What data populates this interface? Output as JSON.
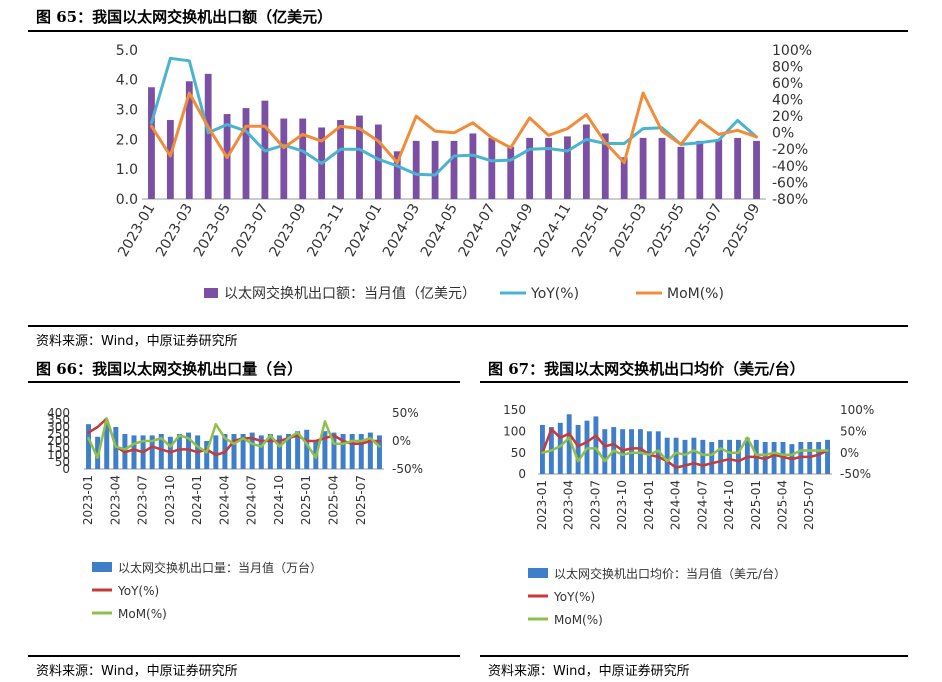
{
  "figure65": {
    "title": "图 65：我国以太网交换机出口额（亿美元）",
    "source": "资料来源：Wind，中原证券研究所"
  },
  "figure66": {
    "title": "图 66：我国以太网交换机出口量（台）",
    "source": "资料来源：Wind，中原证券研究所"
  },
  "figure67": {
    "title": "图 67：我国以太网交换机出口均价（美元/台）",
    "source": "资料来源：Wind，中原证券研究所"
  },
  "colors": {
    "purple": "#7a4fa4",
    "cyan": "#4ab4d0",
    "orange": "#f08c3a",
    "blue": "#3f7ec8",
    "red": "#c63a3a",
    "green": "#8ec04a"
  },
  "chart_data": [
    {
      "id": "c65",
      "type": "bar+line",
      "title": "我国以太网交换机出口额（亿美元）",
      "categories": [
        "2023-01",
        "2023-02",
        "2023-03",
        "2023-04",
        "2023-05",
        "2023-06",
        "2023-07",
        "2023-08",
        "2023-09",
        "2023-10",
        "2023-11",
        "2023-12",
        "2024-01",
        "2024-02",
        "2024-03",
        "2024-04",
        "2024-05",
        "2024-06",
        "2024-07",
        "2024-08",
        "2024-09",
        "2024-10",
        "2024-11",
        "2024-12",
        "2025-01",
        "2025-02",
        "2025-03",
        "2025-04",
        "2025-05",
        "2025-06",
        "2025-07",
        "2025-08",
        "2025-09"
      ],
      "tick_labels": [
        "2023-01",
        "2023-03",
        "2023-05",
        "2023-07",
        "2023-09",
        "2023-11",
        "2024-01",
        "2024-03",
        "2024-05",
        "2024-07",
        "2024-09",
        "2024-11",
        "2025-01",
        "2025-03",
        "2025-05",
        "2025-07",
        "2025-09"
      ],
      "left_ticks": [
        "0.0",
        "1.0",
        "2.0",
        "3.0",
        "4.0",
        "5.0"
      ],
      "right_ticks": [
        "-80%",
        "-60%",
        "-40%",
        "-20%",
        "0%",
        "20%",
        "40%",
        "60%",
        "80%",
        "100%"
      ],
      "ylim_left": [
        0,
        5
      ],
      "ylim_right": [
        -80,
        100
      ],
      "series": [
        {
          "name": "以太网交换机出口额：当月值（亿美元）",
          "kind": "bar",
          "axis": "left",
          "values": [
            3.75,
            2.65,
            3.95,
            4.2,
            2.85,
            3.05,
            3.3,
            2.7,
            2.7,
            2.4,
            2.65,
            2.8,
            2.5,
            1.6,
            1.95,
            1.95,
            1.95,
            2.2,
            2.05,
            1.75,
            2.05,
            2.05,
            2.1,
            2.5,
            2.2,
            1.4,
            2.05,
            2.05,
            1.75,
            1.95,
            2.0,
            2.05,
            1.95
          ]
        },
        {
          "name": "YoY(%)",
          "kind": "line",
          "axis": "right",
          "values": [
            12,
            90,
            87,
            0,
            10,
            2,
            -22,
            -15,
            -22,
            -37,
            -20,
            -20,
            -32,
            -40,
            -50,
            -51,
            -28,
            -27,
            -34,
            -33,
            -20,
            -19,
            -22,
            -8,
            -13,
            -13,
            5,
            6,
            -14,
            -12,
            -9,
            15,
            -5
          ]
        },
        {
          "name": "MoM(%)",
          "kind": "line",
          "axis": "right",
          "values": [
            8,
            -28,
            48,
            7,
            -30,
            8,
            8,
            -18,
            -2,
            -10,
            8,
            5,
            -10,
            -36,
            20,
            2,
            0,
            12,
            -6,
            -18,
            18,
            -3,
            5,
            22,
            -12,
            -36,
            48,
            2,
            -14,
            15,
            -2,
            3,
            -5
          ]
        }
      ]
    },
    {
      "id": "c66",
      "type": "bar+line",
      "title": "我国以太网交换机出口量（台）",
      "categories": [
        "2023-01",
        "2023-02",
        "2023-03",
        "2023-04",
        "2023-05",
        "2023-06",
        "2023-07",
        "2023-08",
        "2023-09",
        "2023-10",
        "2023-11",
        "2023-12",
        "2024-01",
        "2024-02",
        "2024-03",
        "2024-04",
        "2024-05",
        "2024-06",
        "2024-07",
        "2024-08",
        "2024-09",
        "2024-10",
        "2024-11",
        "2024-12",
        "2025-01",
        "2025-02",
        "2025-03",
        "2025-04",
        "2025-05",
        "2025-06",
        "2025-07",
        "2025-08",
        "2025-09"
      ],
      "tick_labels": [
        "2023-01",
        "2023-04",
        "2023-07",
        "2023-10",
        "2024-01",
        "2024-04",
        "2024-07",
        "2024-10",
        "2025-01",
        "2025-04",
        "2025-07"
      ],
      "left_ticks": [
        "0",
        "50",
        "100",
        "150",
        "200",
        "250",
        "300",
        "350",
        "400"
      ],
      "right_ticks": [
        "-50%",
        "0%",
        "50%"
      ],
      "ylim_left": [
        0,
        400
      ],
      "ylim_right": [
        -50,
        50
      ],
      "series": [
        {
          "name": "以太网交换机出口量：当月值（万台）",
          "kind": "bar",
          "axis": "left",
          "values": [
            320,
            230,
            330,
            300,
            250,
            240,
            240,
            240,
            250,
            230,
            250,
            260,
            240,
            200,
            240,
            250,
            250,
            250,
            260,
            240,
            250,
            240,
            250,
            270,
            280,
            200,
            270,
            260,
            250,
            250,
            250,
            260,
            240
          ]
        },
        {
          "name": "YoY(%)",
          "kind": "line",
          "axis": "right",
          "values": [
            15,
            25,
            40,
            -10,
            -20,
            -15,
            -20,
            -10,
            -15,
            -20,
            -15,
            -15,
            -20,
            -15,
            -25,
            -20,
            0,
            5,
            5,
            0,
            0,
            0,
            5,
            10,
            0,
            0,
            5,
            10,
            0,
            -5,
            -5,
            0,
            0
          ]
        },
        {
          "name": "MoM(%)",
          "kind": "line",
          "axis": "right",
          "values": [
            5,
            -30,
            40,
            -10,
            -15,
            -5,
            0,
            0,
            5,
            -10,
            10,
            5,
            -10,
            -20,
            30,
            5,
            -5,
            5,
            -5,
            -10,
            10,
            -10,
            5,
            15,
            -5,
            -30,
            35,
            -5,
            -5,
            0,
            0,
            5,
            -10
          ]
        }
      ]
    },
    {
      "id": "c67",
      "type": "bar+line",
      "title": "我国以太网交换机出口均价（美元/台）",
      "categories": [
        "2023-01",
        "2023-02",
        "2023-03",
        "2023-04",
        "2023-05",
        "2023-06",
        "2023-07",
        "2023-08",
        "2023-09",
        "2023-10",
        "2023-11",
        "2023-12",
        "2024-01",
        "2024-02",
        "2024-03",
        "2024-04",
        "2024-05",
        "2024-06",
        "2024-07",
        "2024-08",
        "2024-09",
        "2024-10",
        "2024-11",
        "2024-12",
        "2025-01",
        "2025-02",
        "2025-03",
        "2025-04",
        "2025-05",
        "2025-06",
        "2025-07",
        "2025-08",
        "2025-09"
      ],
      "tick_labels": [
        "2023-01",
        "2023-04",
        "2023-07",
        "2023-10",
        "2024-01",
        "2024-04",
        "2024-07",
        "2024-10",
        "2025-01",
        "2025-04",
        "2025-07"
      ],
      "left_ticks": [
        "0",
        "50",
        "100",
        "150"
      ],
      "right_ticks": [
        "-50%",
        "0%",
        "50%",
        "100%"
      ],
      "ylim_left": [
        0,
        150
      ],
      "ylim_right": [
        -50,
        100
      ],
      "series": [
        {
          "name": "以太网交换机出口均价：当月值（美元/台）",
          "kind": "bar",
          "axis": "left",
          "values": [
            115,
            110,
            120,
            140,
            115,
            125,
            135,
            105,
            110,
            105,
            105,
            105,
            100,
            100,
            85,
            85,
            80,
            85,
            80,
            75,
            80,
            80,
            80,
            85,
            80,
            75,
            75,
            75,
            70,
            75,
            75,
            75,
            80
          ]
        },
        {
          "name": "YoY(%)",
          "kind": "line",
          "axis": "right",
          "values": [
            0,
            55,
            35,
            45,
            15,
            25,
            40,
            15,
            20,
            5,
            10,
            10,
            -5,
            -10,
            -20,
            -35,
            -30,
            -25,
            -30,
            -25,
            -20,
            -15,
            -20,
            -10,
            -10,
            -15,
            -5,
            -10,
            -15,
            -10,
            -10,
            -5,
            5
          ]
        },
        {
          "name": "MoM(%)",
          "kind": "line",
          "axis": "right",
          "values": [
            0,
            5,
            15,
            35,
            -20,
            10,
            10,
            -20,
            5,
            -5,
            0,
            0,
            -5,
            5,
            -20,
            0,
            -5,
            5,
            -5,
            -5,
            10,
            0,
            0,
            35,
            -5,
            -5,
            0,
            -5,
            -5,
            5,
            5,
            5,
            5
          ]
        }
      ]
    }
  ]
}
